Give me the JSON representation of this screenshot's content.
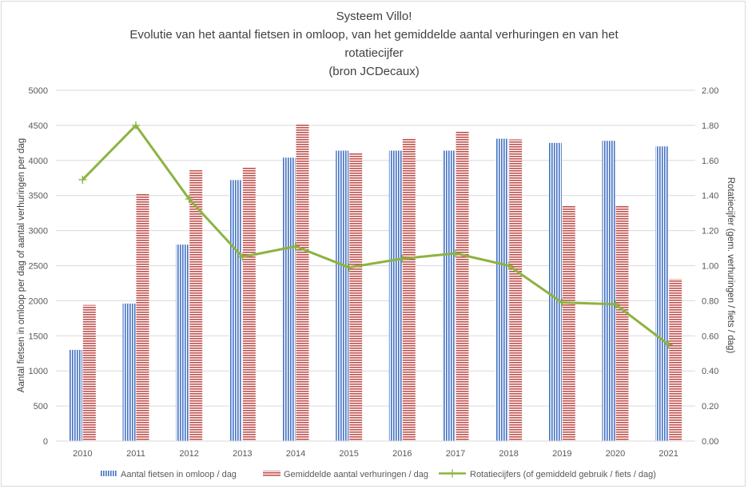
{
  "chart_data": {
    "type": "bar",
    "title_lines": [
      "Systeem Villo!",
      "Evolutie van het aantal fietsen in omloop, van het gemiddelde aantal verhuringen en van het",
      "rotatiecijfer",
      "(bron JCDecaux)"
    ],
    "categories": [
      "2010",
      "2011",
      "2012",
      "2013",
      "2014",
      "2015",
      "2016",
      "2017",
      "2018",
      "2019",
      "2020",
      "2021"
    ],
    "series": [
      {
        "name": "Aantal fietsen in omloop / dag",
        "type": "bar",
        "axis": "left",
        "color": "#4472c4",
        "values": [
          1300,
          1960,
          2800,
          3720,
          4040,
          4140,
          4140,
          4140,
          4310,
          4250,
          4280,
          4200
        ]
      },
      {
        "name": "Gemiddelde aantal verhuringen / dag",
        "type": "bar",
        "axis": "left",
        "color": "#c0504d",
        "values": [
          1940,
          3530,
          3860,
          3900,
          4510,
          4100,
          4320,
          4420,
          4300,
          3360,
          3360,
          2310
        ]
      },
      {
        "name": "Rotatiecijfers (of gemiddeld gebruik / fiets / dag)",
        "type": "line",
        "axis": "right",
        "color": "#8db340",
        "values": [
          1.49,
          1.8,
          1.38,
          1.05,
          1.11,
          0.99,
          1.04,
          1.07,
          1.0,
          0.79,
          0.78,
          0.55
        ]
      }
    ],
    "ylabel": "Aantal fietsen in omloop per dag of  aantal verhuringen per dag",
    "y2label": "Rotatiecijfer (gem. verhuringen / fiets / dag)",
    "ylim": [
      0,
      5000
    ],
    "y2lim": [
      0,
      2
    ],
    "yticks": [
      "0",
      "500",
      "1000",
      "1500",
      "2000",
      "2500",
      "3000",
      "3500",
      "4000",
      "4500",
      "5000"
    ],
    "y2ticks": [
      "0.00",
      "0.20",
      "0.40",
      "0.60",
      "0.80",
      "1.00",
      "1.20",
      "1.40",
      "1.60",
      "1.80",
      "2.00"
    ],
    "grid": true,
    "legend_position": "bottom"
  }
}
